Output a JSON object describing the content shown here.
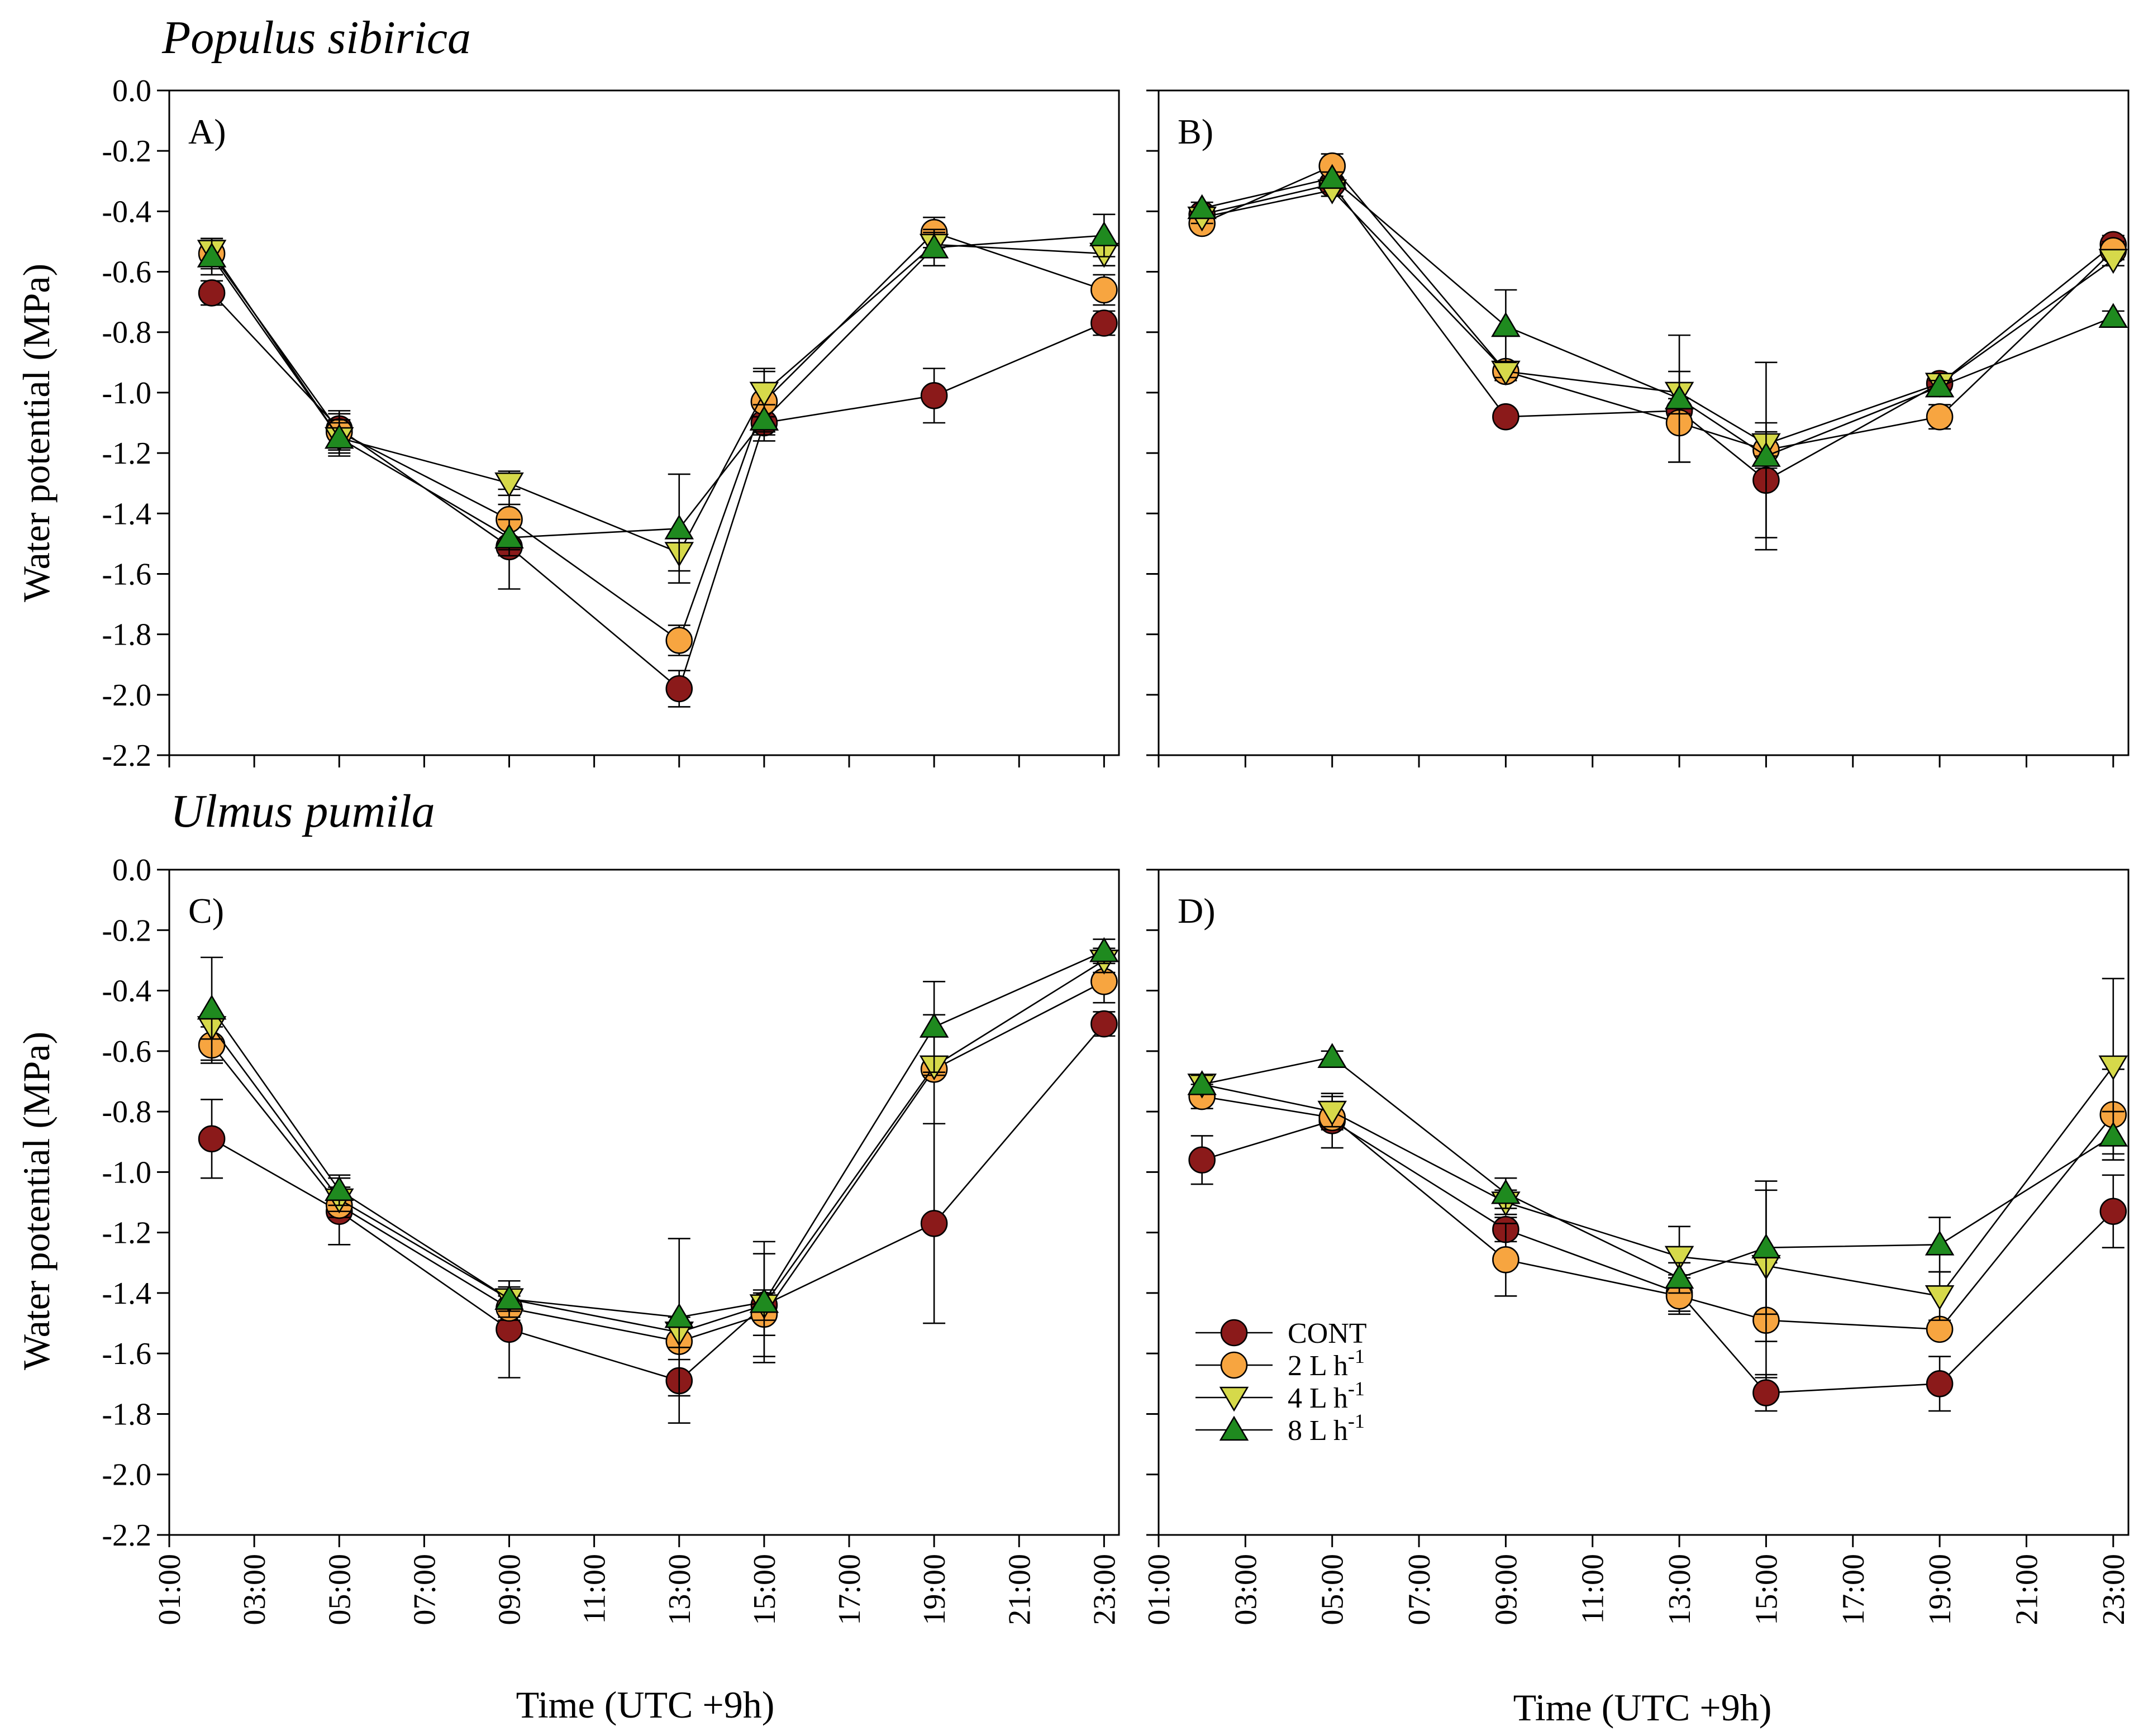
{
  "figure": {
    "species_top": "Populus sibirica",
    "species_bottom": "Ulmus pumila",
    "ylabel": "Water potential (MPa)",
    "xlabel": "Time (UTC +9h)"
  },
  "legend": {
    "placement": "inside panel D, lower-left",
    "items": [
      {
        "key": "cont",
        "label": "CONT"
      },
      {
        "key": "l2",
        "label": "2 L h",
        "sup": "-1"
      },
      {
        "key": "l4",
        "label": "4 L h",
        "sup": "-1"
      },
      {
        "key": "l8",
        "label": "8 L h",
        "sup": "-1"
      }
    ]
  },
  "series_style": {
    "cont": {
      "color": "#8b1a1a",
      "marker": "circle"
    },
    "l2": {
      "color": "#f7a540",
      "marker": "circle"
    },
    "l4": {
      "color": "#d6d94a",
      "marker": "triangle-down"
    },
    "l8": {
      "color": "#1f8a1f",
      "marker": "triangle-up"
    }
  },
  "chart_data": [
    {
      "type": "line",
      "panel": "A)",
      "xticks": [
        "01:00",
        "03:00",
        "05:00",
        "07:00",
        "09:00",
        "11:00",
        "13:00",
        "15:00",
        "17:00",
        "19:00",
        "21:00",
        "23:00"
      ],
      "yticks": [
        "0.0",
        "-0.2",
        "-0.4",
        "-0.6",
        "-0.8",
        "-1.0",
        "-1.2",
        "-1.4",
        "-1.6",
        "-1.8",
        "-2.0",
        "-2.2"
      ],
      "xlim": [
        1,
        23.35
      ],
      "ylim": [
        -2.2,
        0
      ],
      "x": [
        2,
        5,
        9,
        13,
        15,
        19,
        23
      ],
      "series": [
        {
          "key": "cont",
          "name": "CONT",
          "values": [
            -0.67,
            -1.12,
            -1.51,
            -1.98,
            -1.1,
            -1.01,
            -0.77
          ],
          "err": [
            0.04,
            0.06,
            0.14,
            0.06,
            0.06,
            0.09,
            0.04
          ]
        },
        {
          "key": "l2",
          "name": "2 L h-1",
          "values": [
            -0.54,
            -1.13,
            -1.42,
            -1.82,
            -1.03,
            -0.47,
            -0.66
          ],
          "err": [
            0.05,
            0.06,
            0.1,
            0.05,
            0.1,
            0.05,
            0.05
          ]
        },
        {
          "key": "l4",
          "name": "4 L h-1",
          "values": [
            -0.53,
            -1.15,
            -1.3,
            -1.53,
            -1.0,
            -0.51,
            -0.54
          ],
          "err": [
            0.04,
            0.05,
            0.04,
            0.06,
            0.08,
            0.04,
            0.04
          ]
        },
        {
          "key": "l8",
          "name": "8 L h-1",
          "values": [
            -0.55,
            -1.15,
            -1.48,
            -1.45,
            -1.09,
            -0.52,
            -0.48
          ],
          "err": [
            0.06,
            0.06,
            0.06,
            0.18,
            0.05,
            0.06,
            0.07
          ]
        }
      ]
    },
    {
      "type": "line",
      "panel": "B)",
      "xticks": [
        "01:00",
        "03:00",
        "05:00",
        "07:00",
        "09:00",
        "11:00",
        "13:00",
        "15:00",
        "17:00",
        "19:00",
        "21:00",
        "23:00"
      ],
      "yticks": [
        "0.0",
        "-0.2",
        "-0.4",
        "-0.6",
        "-0.8",
        "-1.0",
        "-1.2",
        "-1.4",
        "-1.6",
        "-1.8",
        "-2.0",
        "-2.2"
      ],
      "xlim": [
        1,
        23.35
      ],
      "ylim": [
        -2.2,
        0
      ],
      "x": [
        2,
        5,
        9,
        13,
        15,
        19,
        23
      ],
      "series": [
        {
          "key": "cont",
          "name": "CONT",
          "values": [
            -0.41,
            -0.31,
            -1.08,
            -1.06,
            -1.29,
            -0.97,
            -0.51
          ],
          "err": [
            0.02,
            0.02,
            0.02,
            0.04,
            0.19,
            0.02,
            0.03
          ]
        },
        {
          "key": "l2",
          "name": "2 L h-1",
          "values": [
            -0.44,
            -0.25,
            -0.93,
            -1.1,
            -1.19,
            -1.08,
            -0.53
          ],
          "err": [
            0.02,
            0.04,
            0.03,
            0.13,
            0.06,
            0.04,
            0.03
          ]
        },
        {
          "key": "l4",
          "name": "4 L h-1",
          "values": [
            -0.42,
            -0.33,
            -0.93,
            -1.0,
            -1.17,
            -0.97,
            -0.56
          ],
          "err": [
            0.02,
            0.02,
            0.02,
            0.07,
            0.04,
            0.02,
            0.02
          ]
        },
        {
          "key": "l8",
          "name": "8 L h-1",
          "values": [
            -0.39,
            -0.29,
            -0.78,
            -1.02,
            -1.21,
            -0.98,
            -0.75
          ],
          "err": [
            0.02,
            0.02,
            0.12,
            0.21,
            0.31,
            0.02,
            0.02
          ]
        }
      ]
    },
    {
      "type": "line",
      "panel": "C)",
      "xticks": [
        "01:00",
        "03:00",
        "05:00",
        "07:00",
        "09:00",
        "11:00",
        "13:00",
        "15:00",
        "17:00",
        "19:00",
        "21:00",
        "23:00"
      ],
      "yticks": [
        "0.0",
        "-0.2",
        "-0.4",
        "-0.6",
        "-0.8",
        "-1.0",
        "-1.2",
        "-1.4",
        "-1.6",
        "-1.8",
        "-2.0",
        "-2.2"
      ],
      "xlim": [
        1,
        23.35
      ],
      "ylim": [
        -2.2,
        0
      ],
      "x": [
        2,
        5,
        9,
        13,
        15,
        19,
        23
      ],
      "series": [
        {
          "key": "cont",
          "name": "CONT",
          "values": [
            -0.89,
            -1.13,
            -1.52,
            -1.69,
            -1.44,
            -1.17,
            -0.51
          ],
          "err": [
            0.13,
            0.11,
            0.16,
            0.14,
            0.17,
            0.33,
            0.04
          ]
        },
        {
          "key": "l2",
          "name": "2 L h-1",
          "values": [
            -0.58,
            -1.11,
            -1.45,
            -1.56,
            -1.47,
            -0.66,
            -0.37
          ],
          "err": [
            0.06,
            0.04,
            0.04,
            0.06,
            0.07,
            0.18,
            0.07
          ]
        },
        {
          "key": "l4",
          "name": "4 L h-1",
          "values": [
            -0.52,
            -1.09,
            -1.42,
            -1.53,
            -1.44,
            -0.65,
            -0.3
          ],
          "err": [
            0.04,
            0.04,
            0.04,
            0.05,
            0.05,
            0.03,
            0.04
          ]
        },
        {
          "key": "l8",
          "name": "8 L h-1",
          "values": [
            -0.46,
            -1.06,
            -1.42,
            -1.48,
            -1.43,
            -0.52,
            -0.27
          ],
          "err": [
            0.17,
            0.05,
            0.06,
            0.26,
            0.2,
            0.15,
            0.04
          ]
        }
      ]
    },
    {
      "type": "line",
      "panel": "D)",
      "xticks": [
        "01:00",
        "03:00",
        "05:00",
        "07:00",
        "09:00",
        "11:00",
        "13:00",
        "15:00",
        "17:00",
        "19:00",
        "21:00",
        "23:00"
      ],
      "yticks": [
        "0.0",
        "-0.2",
        "-0.4",
        "-0.6",
        "-0.8",
        "-1.0",
        "-1.2",
        "-1.4",
        "-1.6",
        "-1.8",
        "-2.0",
        "-2.2"
      ],
      "xlim": [
        1,
        23.35
      ],
      "ylim": [
        -2.2,
        0
      ],
      "x": [
        2,
        5,
        9,
        13,
        15,
        19,
        23
      ],
      "series": [
        {
          "key": "cont",
          "name": "CONT",
          "values": [
            -0.96,
            -0.83,
            -1.19,
            -1.4,
            -1.73,
            -1.7,
            -1.13
          ],
          "err": [
            0.08,
            0.09,
            0.04,
            0.06,
            0.06,
            0.09,
            0.12
          ]
        },
        {
          "key": "l2",
          "name": "2 L h-1",
          "values": [
            -0.75,
            -0.82,
            -1.29,
            -1.41,
            -1.49,
            -1.52,
            -0.81
          ],
          "err": [
            0.04,
            0.04,
            0.12,
            0.06,
            0.19,
            0.02,
            0.15
          ]
        },
        {
          "key": "l4",
          "name": "4 L h-1",
          "values": [
            -0.71,
            -0.8,
            -1.1,
            -1.28,
            -1.31,
            -1.41,
            -0.65
          ],
          "err": [
            0.03,
            0.05,
            0.04,
            0.1,
            0.25,
            0.08,
            0.29
          ]
        },
        {
          "key": "l8",
          "name": "8 L h-1",
          "values": [
            -0.71,
            -0.62,
            -1.07,
            -1.35,
            -1.25,
            -1.24,
            -0.88
          ],
          "err": [
            0.03,
            0.02,
            0.05,
            0.05,
            0.22,
            0.09,
            0.08
          ]
        }
      ]
    }
  ]
}
